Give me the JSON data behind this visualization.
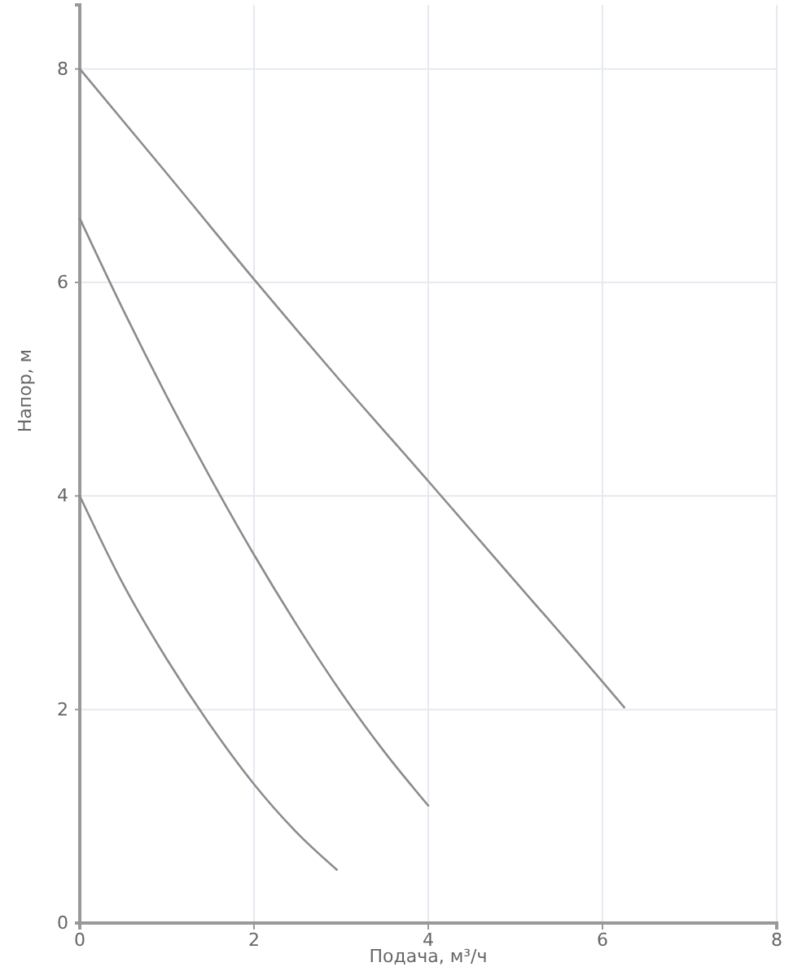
{
  "chart_data": {
    "type": "line",
    "xlabel": "Подача, м³/ч",
    "ylabel": "Напор, м",
    "xlim": [
      0,
      8
    ],
    "ylim": [
      0,
      8.6
    ],
    "xticks": [
      0,
      2,
      4,
      6,
      8
    ],
    "yticks": [
      0,
      2,
      4,
      6,
      8
    ],
    "grid": true,
    "series": [
      {
        "color": "#8c8c8c",
        "x": [
          0,
          1,
          2,
          3,
          4,
          5,
          6,
          6.25
        ],
        "values": [
          8.0,
          7.02,
          6.03,
          5.07,
          4.14,
          3.2,
          2.26,
          2.02
        ]
      },
      {
        "color": "#8c8c8c",
        "x": [
          0,
          0.5,
          1,
          1.5,
          2,
          2.5,
          3,
          3.5,
          4
        ],
        "values": [
          6.6,
          5.74,
          4.93,
          4.17,
          3.45,
          2.78,
          2.16,
          1.6,
          1.1
        ]
      },
      {
        "color": "#8c8c8c",
        "x": [
          0,
          0.5,
          1,
          1.5,
          2,
          2.5,
          2.95
        ],
        "values": [
          4.0,
          3.17,
          2.47,
          1.85,
          1.3,
          0.84,
          0.5
        ]
      }
    ]
  }
}
